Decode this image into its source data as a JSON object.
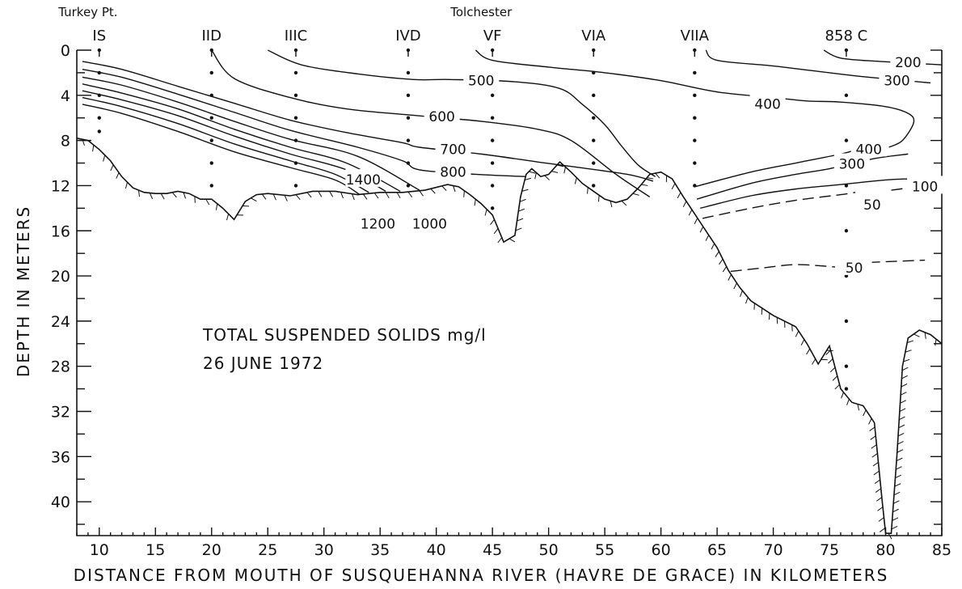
{
  "chart_data": {
    "type": "contour",
    "title": "TOTAL SUSPENDED SOLIDS mg/l",
    "subtitle": "26 JUNE 1972",
    "xlabel": "DISTANCE FROM MOUTH OF SUSQUEHANNA RIVER (HAVRE DE GRACE) IN KILOMETERS",
    "ylabel": "DEPTH IN METERS",
    "xlim": [
      8,
      85
    ],
    "ylim": [
      0,
      43
    ],
    "y_inverted": true,
    "x_ticks": [
      10,
      15,
      20,
      25,
      30,
      35,
      40,
      45,
      50,
      55,
      60,
      65,
      70,
      75,
      80,
      85
    ],
    "y_ticks": [
      0,
      4,
      8,
      12,
      16,
      20,
      24,
      28,
      32,
      36,
      40
    ],
    "grid": false,
    "place_names": [
      {
        "text": "Turkey Pt.",
        "x": 9
      },
      {
        "text": "Tolchester",
        "x": 44
      }
    ],
    "stations": [
      {
        "name": "IS",
        "x": 10,
        "sample_depths": [
          0,
          2,
          4,
          6,
          7.2
        ]
      },
      {
        "name": "IID",
        "x": 20,
        "sample_depths": [
          0,
          2,
          4,
          6,
          8,
          10,
          12
        ]
      },
      {
        "name": "IIIC",
        "x": 27.5,
        "sample_depths": [
          0,
          2,
          4,
          6,
          8,
          10,
          12
        ]
      },
      {
        "name": "IVD",
        "x": 37.5,
        "sample_depths": [
          0,
          2,
          4,
          6,
          8,
          10,
          12
        ]
      },
      {
        "name": "VF",
        "x": 45,
        "sample_depths": [
          0,
          2,
          4,
          6,
          8,
          10,
          12,
          14
        ]
      },
      {
        "name": "VIA",
        "x": 54,
        "sample_depths": [
          0,
          2,
          4,
          6,
          8,
          10,
          12
        ]
      },
      {
        "name": "VIIA",
        "x": 63,
        "sample_depths": [
          0,
          2,
          4,
          6,
          8,
          10,
          12
        ]
      },
      {
        "name": "858 C",
        "x": 76.5,
        "sample_depths": [
          0,
          4,
          8,
          12,
          16,
          20,
          24,
          28,
          30
        ]
      }
    ],
    "bottom_profile": [
      [
        8,
        7.8
      ],
      [
        9,
        8.0
      ],
      [
        10,
        8.8
      ],
      [
        11,
        9.8
      ],
      [
        12,
        11.2
      ],
      [
        13,
        12.2
      ],
      [
        14,
        12.6
      ],
      [
        15,
        12.7
      ],
      [
        16,
        12.7
      ],
      [
        17,
        12.5
      ],
      [
        18,
        12.7
      ],
      [
        19,
        13.2
      ],
      [
        20,
        13.2
      ],
      [
        21,
        14.0
      ],
      [
        22,
        15.0
      ],
      [
        23,
        13.4
      ],
      [
        24,
        12.8
      ],
      [
        25,
        12.7
      ],
      [
        27,
        12.9
      ],
      [
        29,
        12.5
      ],
      [
        31,
        12.5
      ],
      [
        33,
        12.8
      ],
      [
        35,
        12.6
      ],
      [
        37,
        12.6
      ],
      [
        39,
        12.4
      ],
      [
        41,
        11.9
      ],
      [
        42,
        12.1
      ],
      [
        43,
        12.8
      ],
      [
        44,
        13.6
      ],
      [
        45,
        14.6
      ],
      [
        46,
        17.0
      ],
      [
        47,
        16.4
      ],
      [
        47.5,
        13.0
      ],
      [
        48,
        11.0
      ],
      [
        48.5,
        10.5
      ],
      [
        49.3,
        11.2
      ],
      [
        50,
        11.0
      ],
      [
        51,
        9.9
      ],
      [
        52,
        10.8
      ],
      [
        53,
        11.8
      ],
      [
        54,
        12.5
      ],
      [
        55,
        13.2
      ],
      [
        56,
        13.5
      ],
      [
        57,
        13.2
      ],
      [
        58,
        12.2
      ],
      [
        59,
        11.0
      ],
      [
        60,
        10.8
      ],
      [
        61,
        11.4
      ],
      [
        62,
        13.0
      ],
      [
        63,
        14.5
      ],
      [
        64,
        16.0
      ],
      [
        65,
        17.5
      ],
      [
        66,
        19.5
      ],
      [
        67,
        21.0
      ],
      [
        68,
        22.2
      ],
      [
        70,
        23.5
      ],
      [
        72,
        24.5
      ],
      [
        73,
        26.0
      ],
      [
        74,
        27.8
      ],
      [
        75,
        26.2
      ],
      [
        76,
        30.0
      ],
      [
        77,
        31.2
      ],
      [
        78,
        31.5
      ],
      [
        79,
        33.0
      ],
      [
        79.7,
        40.0
      ],
      [
        80,
        42.8
      ],
      [
        80.5,
        42.8
      ],
      [
        81,
        36.0
      ],
      [
        81.5,
        28.0
      ],
      [
        82,
        25.5
      ],
      [
        83,
        24.8
      ],
      [
        84,
        25.2
      ],
      [
        85,
        26.0
      ]
    ],
    "contours": [
      {
        "label": "1400",
        "label_at": [
          33.5,
          11.4
        ],
        "points": [
          [
            8.5,
            4.8
          ],
          [
            12,
            5.6
          ],
          [
            17,
            7.2
          ],
          [
            22,
            9.0
          ],
          [
            27,
            10.4
          ],
          [
            31,
            11.5
          ],
          [
            33.2,
            12.8
          ]
        ]
      },
      {
        "label": "1200",
        "label_at": [
          34.8,
          15.3
        ],
        "points": [
          [
            8.5,
            4.2
          ],
          [
            12,
            5.0
          ],
          [
            17,
            6.5
          ],
          [
            22,
            8.3
          ],
          [
            27,
            9.8
          ],
          [
            31,
            11.0
          ],
          [
            34,
            12.6
          ]
        ]
      },
      {
        "label": "1000",
        "label_at": [
          39.4,
          15.3
        ],
        "points": [
          [
            8.5,
            3.6
          ],
          [
            12,
            4.4
          ],
          [
            17,
            5.8
          ],
          [
            22,
            7.6
          ],
          [
            27,
            9.2
          ],
          [
            32,
            10.6
          ],
          [
            35.5,
            12.5
          ]
        ]
      },
      {
        "label": "",
        "points": [
          [
            8.5,
            3.0
          ],
          [
            12,
            3.8
          ],
          [
            17,
            5.2
          ],
          [
            22,
            7.0
          ],
          [
            27,
            8.6
          ],
          [
            32,
            10.0
          ],
          [
            36.8,
            12.5
          ]
        ]
      },
      {
        "label": "",
        "points": [
          [
            8.5,
            2.4
          ],
          [
            12,
            3.1
          ],
          [
            17,
            4.6
          ],
          [
            22,
            6.3
          ],
          [
            27,
            7.9
          ],
          [
            33,
            9.4
          ],
          [
            38.5,
            12.4
          ]
        ]
      },
      {
        "label": "800",
        "label_at": [
          41.5,
          10.7
        ],
        "points": [
          [
            8.5,
            1.7
          ],
          [
            12,
            2.4
          ],
          [
            17,
            3.9
          ],
          [
            22,
            5.5
          ],
          [
            27,
            7.1
          ],
          [
            33,
            8.6
          ],
          [
            37,
            9.8
          ],
          [
            38.5,
            10.6
          ],
          [
            43.5,
            11.0
          ],
          [
            48,
            11.2
          ]
        ]
      },
      {
        "label": "700",
        "label_at": [
          41.5,
          8.7
        ],
        "points": [
          [
            8.5,
            1.0
          ],
          [
            12,
            1.7
          ],
          [
            17,
            3.2
          ],
          [
            22,
            4.7
          ],
          [
            27,
            6.2
          ],
          [
            32,
            7.3
          ],
          [
            37,
            8.2
          ],
          [
            38.5,
            8.6
          ],
          [
            44,
            9.2
          ],
          [
            49,
            9.9
          ],
          [
            52,
            10.3
          ],
          [
            57,
            11.0
          ],
          [
            59.3,
            11.6
          ]
        ]
      },
      {
        "label": "600",
        "label_at": [
          40.5,
          5.8
        ],
        "points": [
          [
            20,
            0
          ],
          [
            22,
            2.5
          ],
          [
            27,
            4.2
          ],
          [
            32,
            5.2
          ],
          [
            38.3,
            5.8
          ],
          [
            44,
            6.3
          ],
          [
            49,
            7.0
          ],
          [
            52,
            8.0
          ],
          [
            56,
            11.0
          ],
          [
            59,
            13.0
          ]
        ]
      },
      {
        "label": "500",
        "label_at": [
          44,
          2.6
        ],
        "points": [
          [
            25,
            0
          ],
          [
            28,
            1.3
          ],
          [
            33,
            2.1
          ],
          [
            38,
            2.6
          ],
          [
            41.2,
            2.6
          ],
          [
            47,
            2.8
          ],
          [
            51,
            3.4
          ],
          [
            53,
            4.8
          ],
          [
            55,
            6.6
          ],
          [
            56.5,
            8.5
          ],
          [
            58,
            10.2
          ],
          [
            59.5,
            11.2
          ]
        ]
      },
      {
        "label": "400",
        "label_at": [
          69.5,
          4.7
        ],
        "points": [
          [
            43.5,
            0
          ],
          [
            45,
            0.9
          ],
          [
            50,
            1.5
          ],
          [
            55,
            2.0
          ],
          [
            60,
            2.7
          ],
          [
            65,
            3.7
          ],
          [
            70,
            4.2
          ],
          [
            73,
            4.5
          ],
          [
            76,
            4.6
          ],
          [
            80,
            5.0
          ],
          [
            82,
            5.6
          ],
          [
            82.5,
            6.4
          ],
          [
            81.5,
            8.0
          ],
          [
            80.3,
            8.6
          ]
        ]
      },
      {
        "label": "300",
        "label_at": [
          81,
          2.6
        ],
        "points": [
          [
            64,
            0
          ],
          [
            65,
            0.9
          ],
          [
            70,
            1.4
          ],
          [
            75,
            2.0
          ],
          [
            78.5,
            2.4
          ],
          [
            84,
            2.9
          ]
        ]
      },
      {
        "label": "200",
        "label_at": [
          82,
          1.0
        ],
        "points": [
          [
            74.5,
            0
          ],
          [
            76,
            0.7
          ],
          [
            79.5,
            1.0
          ],
          [
            85,
            1.3
          ]
        ]
      },
      {
        "label": "400",
        "label_at": [
          78.5,
          8.7
        ],
        "points": [
          [
            63,
            12.1
          ],
          [
            68,
            10.8
          ],
          [
            72,
            10.0
          ],
          [
            76,
            9.2
          ],
          [
            77.5,
            8.8
          ]
        ]
      },
      {
        "label": "300",
        "label_at": [
          77,
          10.0
        ],
        "points": [
          [
            63.2,
            13.2
          ],
          [
            68,
            11.8
          ],
          [
            72,
            11.0
          ],
          [
            75,
            10.5
          ],
          [
            79,
            9.6
          ],
          [
            82,
            9.2
          ]
        ]
      },
      {
        "label": "100",
        "label_at": [
          83.5,
          12.0
        ],
        "points": [
          [
            63.5,
            14.0
          ],
          [
            68,
            12.9
          ],
          [
            72,
            12.3
          ],
          [
            76,
            11.9
          ],
          [
            80,
            11.5
          ],
          [
            82,
            11.4
          ]
        ]
      },
      {
        "label": "50",
        "label_at": [
          78.8,
          13.6
        ],
        "dashed": true,
        "points": [
          [
            63.7,
            14.9
          ],
          [
            68,
            14.0
          ],
          [
            72,
            13.3
          ],
          [
            76,
            12.8
          ],
          [
            77.3,
            12.6
          ]
        ]
      },
      {
        "label": "",
        "dashed": true,
        "points": [
          [
            80.5,
            12.4
          ],
          [
            83,
            12.1
          ],
          [
            85,
            12.0
          ]
        ]
      },
      {
        "label": "50",
        "label_at": [
          77.2,
          19.2
        ],
        "dashed": true,
        "points": [
          [
            66.2,
            19.6
          ],
          [
            69,
            19.3
          ],
          [
            72,
            19.0
          ],
          [
            75.5,
            19.2
          ]
        ]
      },
      {
        "label": "",
        "dashed": true,
        "points": [
          [
            78.5,
            18.8
          ],
          [
            81,
            18.7
          ],
          [
            83.5,
            18.6
          ]
        ]
      }
    ]
  }
}
